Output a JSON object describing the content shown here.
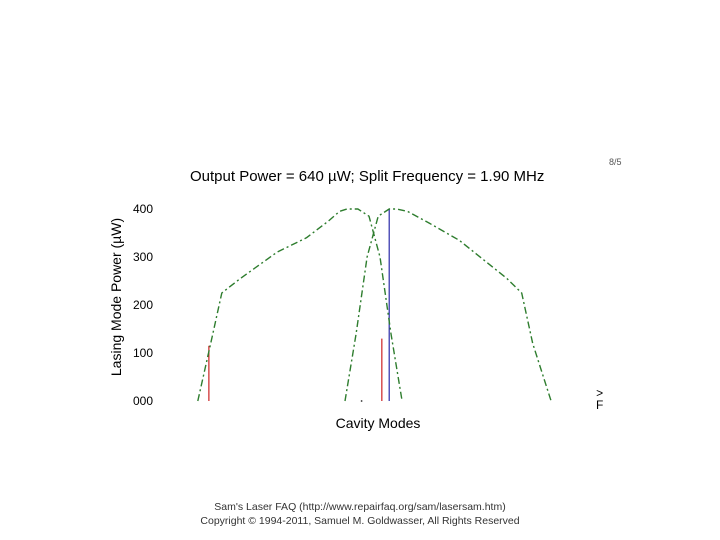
{
  "corner_mark": "8/5",
  "side_glyphs": [
    ">",
    "F"
  ],
  "footer": {
    "line1": "Sam's Laser FAQ (http://www.repairfaq.org/sam/lasersam.htm)",
    "line2": "Copyright © 1994-2011, Samuel M. Goldwasser, All Rights Reserved"
  },
  "colors": {
    "curve": "#2e7d2e",
    "red_line": "#cc2222",
    "blue_line": "#2a2aa8"
  },
  "chart_data": {
    "type": "line",
    "title": "Output Power = 640 µW; Split Frequency = 1.90 MHz",
    "xlabel": "Cavity Modes",
    "ylabel": "Lasing Mode Power (µW)",
    "yticks": [
      "000",
      "100",
      "200",
      "300",
      "400"
    ],
    "ylim": [
      0,
      400
    ],
    "xlim": [
      0,
      100
    ],
    "grid": false,
    "series": [
      {
        "style": "dashed-green",
        "x": [
          0.5,
          4,
          7,
          12,
          22,
          30,
          36,
          39,
          41,
          44,
          47,
          50,
          53,
          56
        ],
        "y": [
          0,
          120,
          225,
          255,
          310,
          340,
          375,
          395,
          400,
          400,
          385,
          300,
          140,
          0
        ]
      },
      {
        "style": "dashed-green",
        "x": [
          40.5,
          43.5,
          46.5,
          49.5,
          52.5,
          54.5,
          57.5,
          63.5,
          71.5,
          84.5,
          88.5,
          91.5,
          96.5
        ],
        "y": [
          0,
          140,
          300,
          385,
          400,
          400,
          395,
          370,
          335,
          255,
          225,
          120,
          0
        ]
      }
    ],
    "mode_lines": [
      {
        "color": "red",
        "x": 3.5,
        "y": 115
      },
      {
        "color": "red",
        "x": 50.5,
        "y": 130
      },
      {
        "color": "blue",
        "x": 52.5,
        "y": 400
      }
    ],
    "marker": {
      "x": 45,
      "y": 0
    }
  }
}
